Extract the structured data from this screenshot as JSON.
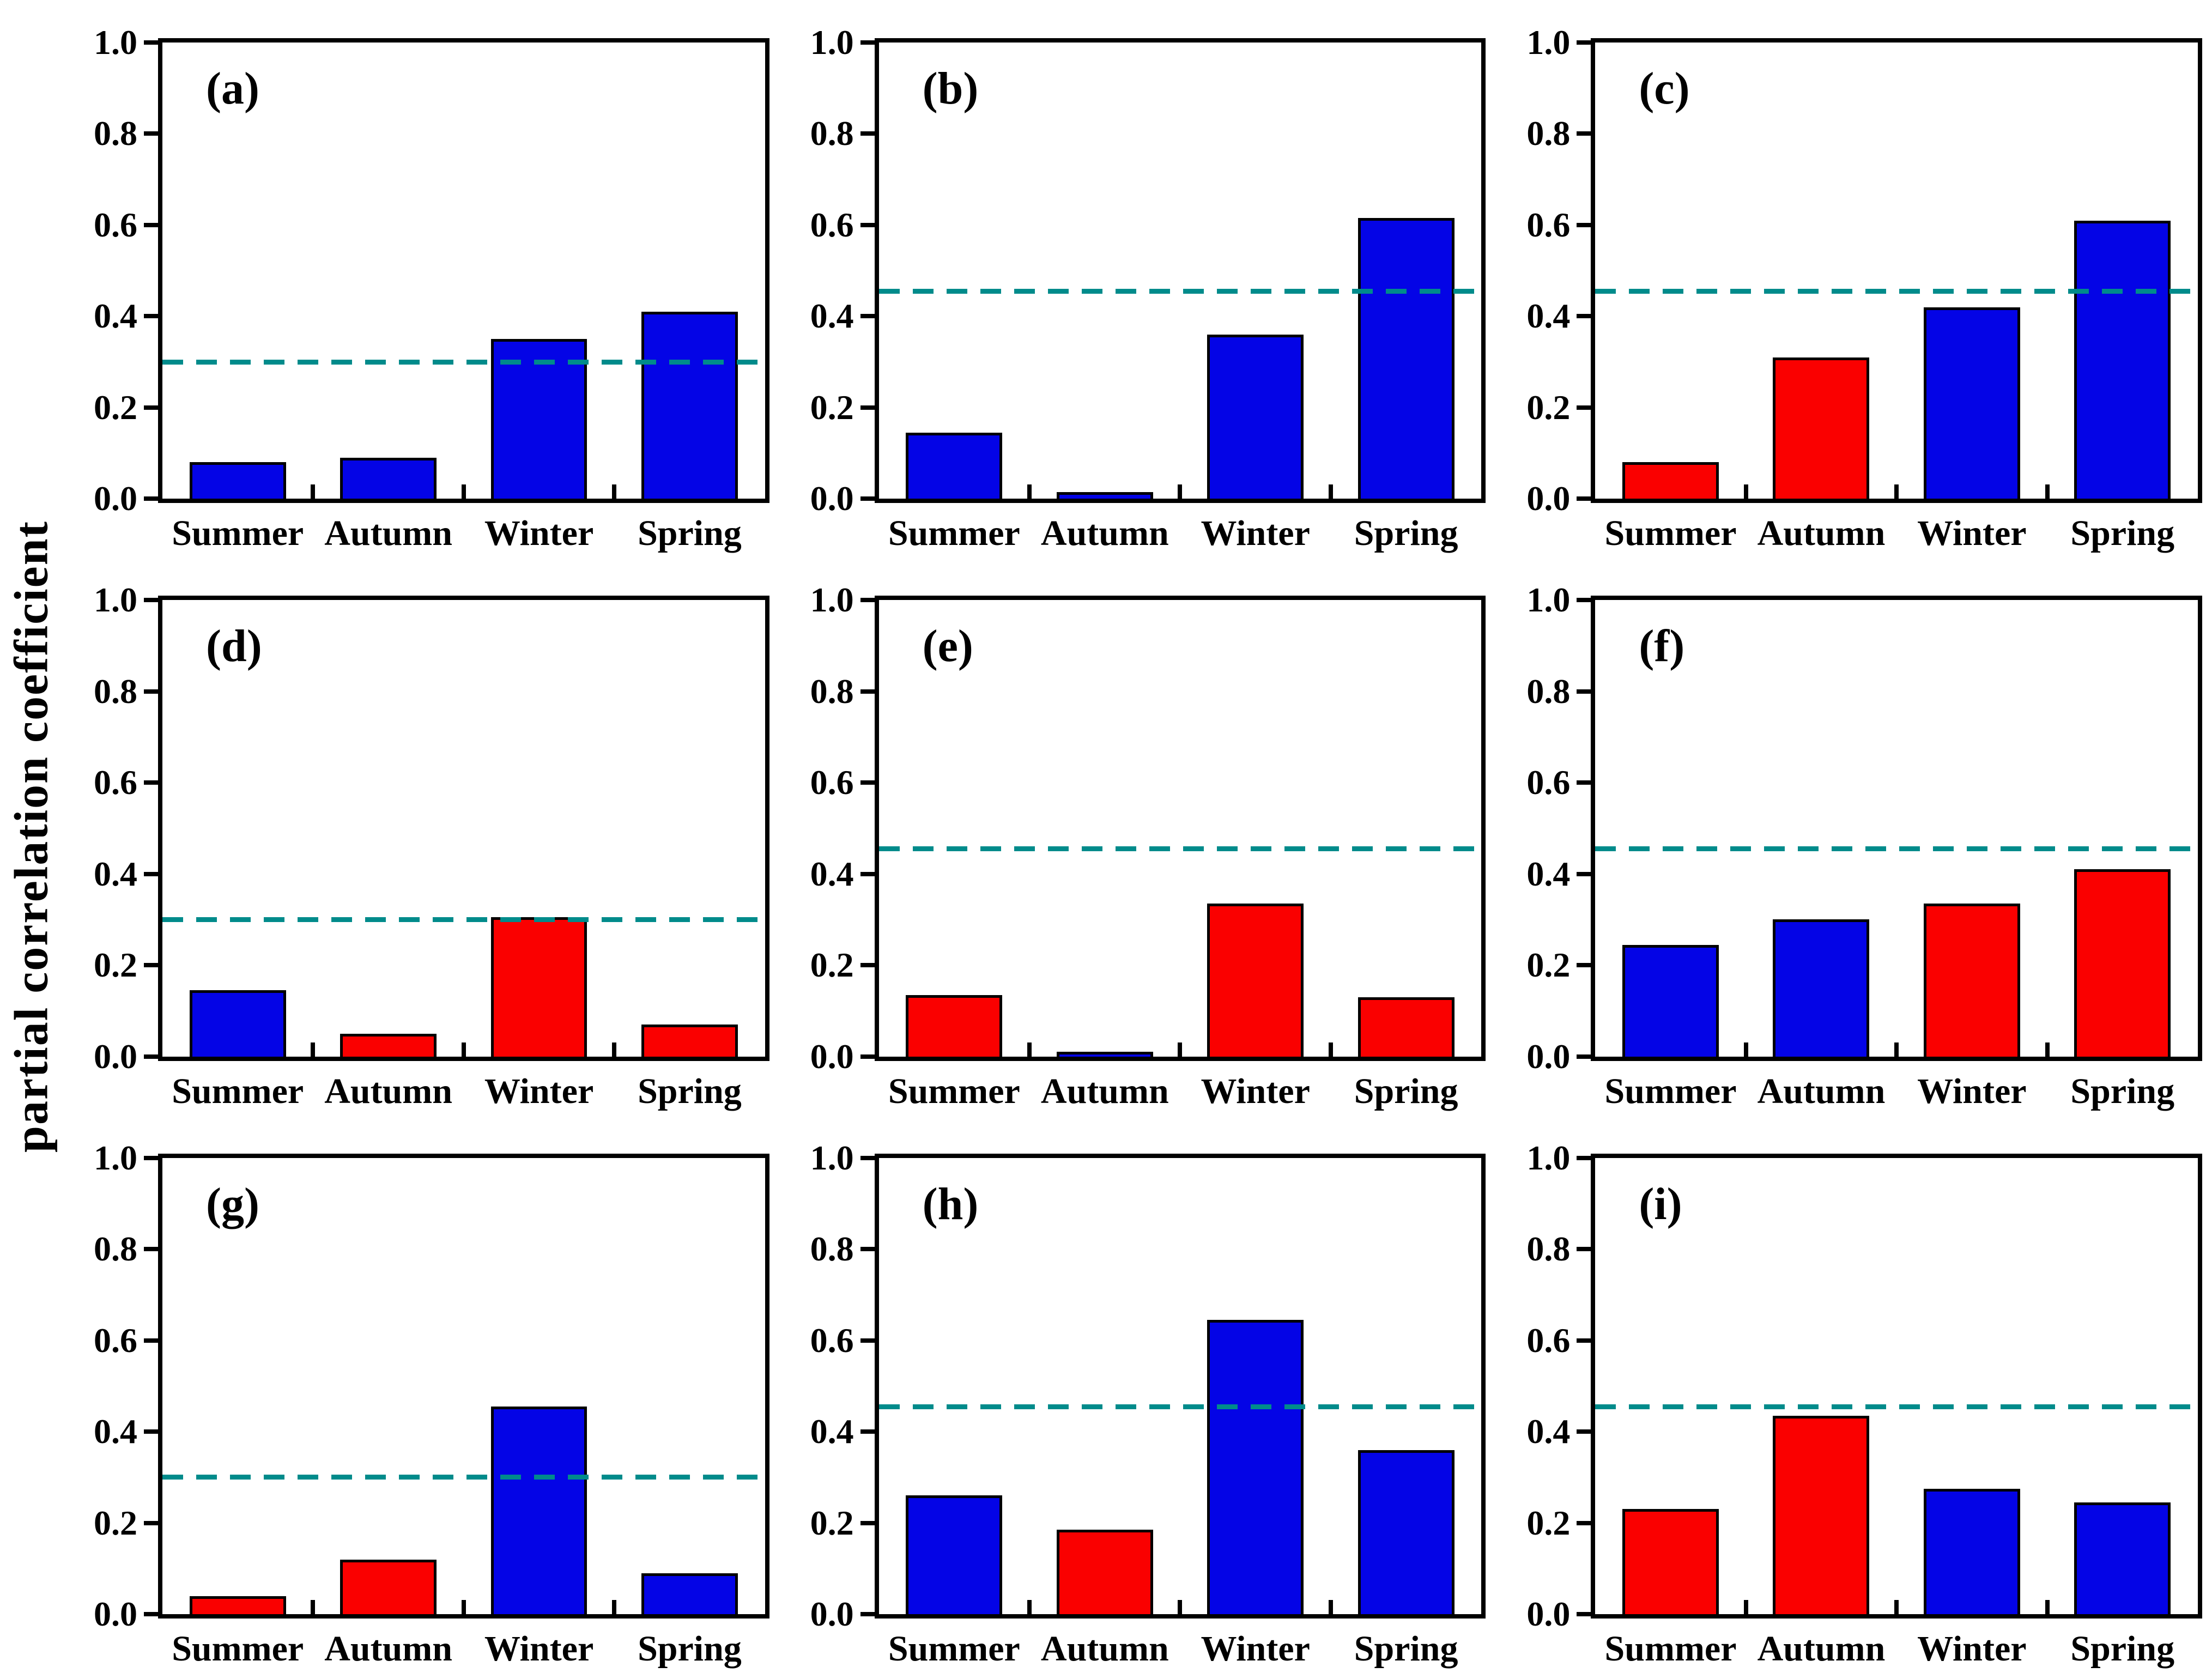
{
  "figure": {
    "ylabel": "partial correlation coefficient"
  },
  "axis": {
    "ymin": 0.0,
    "ymax": 1.0,
    "yticks": [
      "0.0",
      "0.2",
      "0.4",
      "0.6",
      "0.8",
      "1.0"
    ]
  },
  "categories": [
    "Summer",
    "Autumn",
    "Winter",
    "Spring"
  ],
  "colors": {
    "blue": "#0404e6",
    "red": "#fa0000",
    "bar_edge": "#000000",
    "threshold": "#008b8b"
  },
  "chart_data": [
    {
      "type": "bar",
      "panel_label": "(a)",
      "categories": [
        "Summer",
        "Autumn",
        "Winter",
        "Spring"
      ],
      "values": [
        0.08,
        0.09,
        0.35,
        0.41
      ],
      "bar_colors": [
        "blue",
        "blue",
        "blue",
        "blue"
      ],
      "threshold_line": 0.3,
      "ylim": [
        0.0,
        1.0
      ]
    },
    {
      "type": "bar",
      "panel_label": "(b)",
      "categories": [
        "Summer",
        "Autumn",
        "Winter",
        "Spring"
      ],
      "values": [
        0.145,
        0.015,
        0.36,
        0.615
      ],
      "bar_colors": [
        "blue",
        "blue",
        "blue",
        "blue"
      ],
      "threshold_line": 0.455,
      "ylim": [
        0.0,
        1.0
      ]
    },
    {
      "type": "bar",
      "panel_label": "(c)",
      "categories": [
        "Summer",
        "Autumn",
        "Winter",
        "Spring"
      ],
      "values": [
        0.08,
        0.31,
        0.42,
        0.61
      ],
      "bar_colors": [
        "red",
        "red",
        "blue",
        "blue"
      ],
      "threshold_line": 0.455,
      "ylim": [
        0.0,
        1.0
      ]
    },
    {
      "type": "bar",
      "panel_label": "(d)",
      "categories": [
        "Summer",
        "Autumn",
        "Winter",
        "Spring"
      ],
      "values": [
        0.145,
        0.05,
        0.305,
        0.07
      ],
      "bar_colors": [
        "blue",
        "red",
        "red",
        "red"
      ],
      "threshold_line": 0.3,
      "ylim": [
        0.0,
        1.0
      ]
    },
    {
      "type": "bar",
      "panel_label": "(e)",
      "categories": [
        "Summer",
        "Autumn",
        "Winter",
        "Spring"
      ],
      "values": [
        0.135,
        0.01,
        0.335,
        0.13
      ],
      "bar_colors": [
        "red",
        "blue",
        "red",
        "red"
      ],
      "threshold_line": 0.455,
      "ylim": [
        0.0,
        1.0
      ]
    },
    {
      "type": "bar",
      "panel_label": "(f)",
      "categories": [
        "Summer",
        "Autumn",
        "Winter",
        "Spring"
      ],
      "values": [
        0.245,
        0.3,
        0.335,
        0.41
      ],
      "bar_colors": [
        "blue",
        "blue",
        "red",
        "red"
      ],
      "threshold_line": 0.455,
      "ylim": [
        0.0,
        1.0
      ]
    },
    {
      "type": "bar",
      "panel_label": "(g)",
      "categories": [
        "Summer",
        "Autumn",
        "Winter",
        "Spring"
      ],
      "values": [
        0.04,
        0.12,
        0.455,
        0.09
      ],
      "bar_colors": [
        "red",
        "red",
        "blue",
        "blue"
      ],
      "threshold_line": 0.3,
      "ylim": [
        0.0,
        1.0
      ]
    },
    {
      "type": "bar",
      "panel_label": "(h)",
      "categories": [
        "Summer",
        "Autumn",
        "Winter",
        "Spring"
      ],
      "values": [
        0.26,
        0.185,
        0.645,
        0.36
      ],
      "bar_colors": [
        "blue",
        "red",
        "blue",
        "blue"
      ],
      "threshold_line": 0.455,
      "ylim": [
        0.0,
        1.0
      ]
    },
    {
      "type": "bar",
      "panel_label": "(i)",
      "categories": [
        "Summer",
        "Autumn",
        "Winter",
        "Spring"
      ],
      "values": [
        0.23,
        0.435,
        0.275,
        0.245
      ],
      "bar_colors": [
        "red",
        "red",
        "blue",
        "blue"
      ],
      "threshold_line": 0.455,
      "ylim": [
        0.0,
        1.0
      ]
    }
  ]
}
